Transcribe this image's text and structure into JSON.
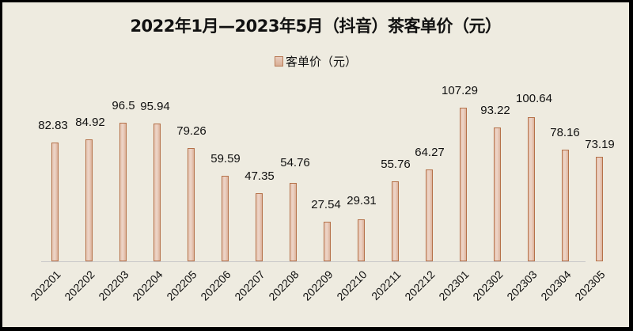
{
  "title": "2022年1月—2023年5月（抖音）茶客单价（元）",
  "legend": {
    "label": "客单价（元）",
    "color": "#E2BBA5",
    "border": "#B57149"
  },
  "colors": {
    "background": "#EEEBE0",
    "frame": "#000000",
    "bar_fill": "#E6C5B3",
    "bar_border": "#B57149",
    "axis": "#C8C8C8"
  },
  "chart_data": {
    "type": "bar",
    "title": "2022年1月—2023年5月（抖音）茶客单价（元）",
    "xlabel": "",
    "ylabel": "",
    "legend": [
      "客单价（元）"
    ],
    "legend_position": "top",
    "grid": false,
    "ylim": [
      0,
      115
    ],
    "categories": [
      "202201",
      "202202",
      "202203",
      "202204",
      "202205",
      "202206",
      "202207",
      "202208",
      "202209",
      "202210",
      "202211",
      "202212",
      "202301",
      "202302",
      "202303",
      "202304",
      "202305"
    ],
    "series": [
      {
        "name": "客单价（元）",
        "values": [
          82.83,
          84.92,
          96.5,
          95.94,
          79.26,
          59.59,
          47.35,
          54.76,
          27.54,
          29.31,
          55.76,
          64.27,
          107.29,
          93.22,
          100.64,
          78.16,
          73.19
        ]
      }
    ],
    "value_labels": [
      "82.83",
      "84.92",
      "96.5",
      "95.94",
      "79.26",
      "59.59",
      "47.35",
      "54.76",
      "27.54",
      "29.31",
      "55.76",
      "64.27",
      "107.29",
      "93.22",
      "100.64",
      "78.16",
      "73.19"
    ]
  }
}
